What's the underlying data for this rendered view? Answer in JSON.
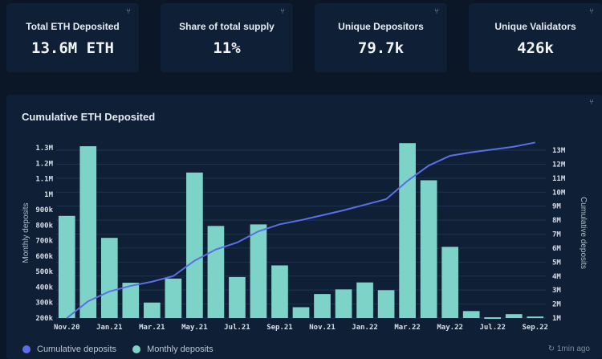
{
  "cards": [
    {
      "label": "Total ETH Deposited",
      "value": "13.6M ETH",
      "icon": "filter-icon"
    },
    {
      "label": "Share of total supply",
      "value": "11%",
      "icon": "filter-icon"
    },
    {
      "label": "Unique Depositors",
      "value": "79.7k",
      "icon": "filter-icon"
    },
    {
      "label": "Unique Validators",
      "value": "426k",
      "icon": "filter-icon"
    }
  ],
  "panel": {
    "title": "Cumulative ETH Deposited",
    "legend": [
      {
        "label": "Cumulative deposits",
        "color": "#5b6ee8"
      },
      {
        "label": "Monthly deposits",
        "color": "#7dd3c8"
      }
    ],
    "updated": "1min ago"
  },
  "chart_data": {
    "type": "bar",
    "title": "Cumulative ETH Deposited",
    "categories": [
      "Nov.20",
      "Dec.20",
      "Jan.21",
      "Feb.21",
      "Mar.21",
      "Apr.21",
      "May.21",
      "Jun.21",
      "Jul.21",
      "Aug.21",
      "Sep.21",
      "Oct.21",
      "Nov.21",
      "Dec.21",
      "Jan.22",
      "Feb.22",
      "Mar.22",
      "Apr.22",
      "May.22",
      "Jun.22",
      "Jul.22",
      "Aug.22",
      "Sep.22"
    ],
    "x_tick_labels": [
      "Nov.20",
      "Jan.21",
      "Mar.21",
      "May.21",
      "Jul.21",
      "Sep.21",
      "Nov.21",
      "Jan.22",
      "Mar.22",
      "May.22",
      "Jul.22",
      "Sep.22"
    ],
    "series": [
      {
        "name": "Monthly deposits",
        "type": "bar",
        "axis": "left",
        "color": "#7dd3c8",
        "values": [
          860000,
          1310000,
          718000,
          428000,
          300000,
          455000,
          1140000,
          795000,
          465000,
          805000,
          540000,
          270000,
          355000,
          385000,
          430000,
          380000,
          1330000,
          1090000,
          660000,
          245000,
          205000,
          225000,
          210000
        ]
      },
      {
        "name": "Cumulative deposits",
        "type": "line",
        "axis": "right",
        "color": "#5b6ee8",
        "values": [
          1000000,
          2200000,
          2900000,
          3300000,
          3600000,
          4000000,
          5100000,
          5900000,
          6400000,
          7200000,
          7700000,
          8000000,
          8350000,
          8700000,
          9100000,
          9500000,
          10800000,
          11900000,
          12600000,
          12850000,
          13050000,
          13250000,
          13550000
        ]
      }
    ],
    "ylabel_left": "Monthly deposits",
    "ylabel_right": "Cumulative deposits",
    "ylim_left": [
      200000,
      1300000
    ],
    "ylim_right": [
      1000000,
      13000000
    ],
    "yticks_left": [
      "200k",
      "300k",
      "400k",
      "500k",
      "600k",
      "700k",
      "800k",
      "900k",
      "1M",
      "1.1M",
      "1.2M",
      "1.3M"
    ],
    "yticks_right": [
      "1M",
      "2M",
      "3M",
      "4M",
      "5M",
      "6M",
      "7M",
      "8M",
      "9M",
      "10M",
      "11M",
      "12M",
      "13M"
    ],
    "grid": true,
    "legend_position": "bottom-left"
  }
}
